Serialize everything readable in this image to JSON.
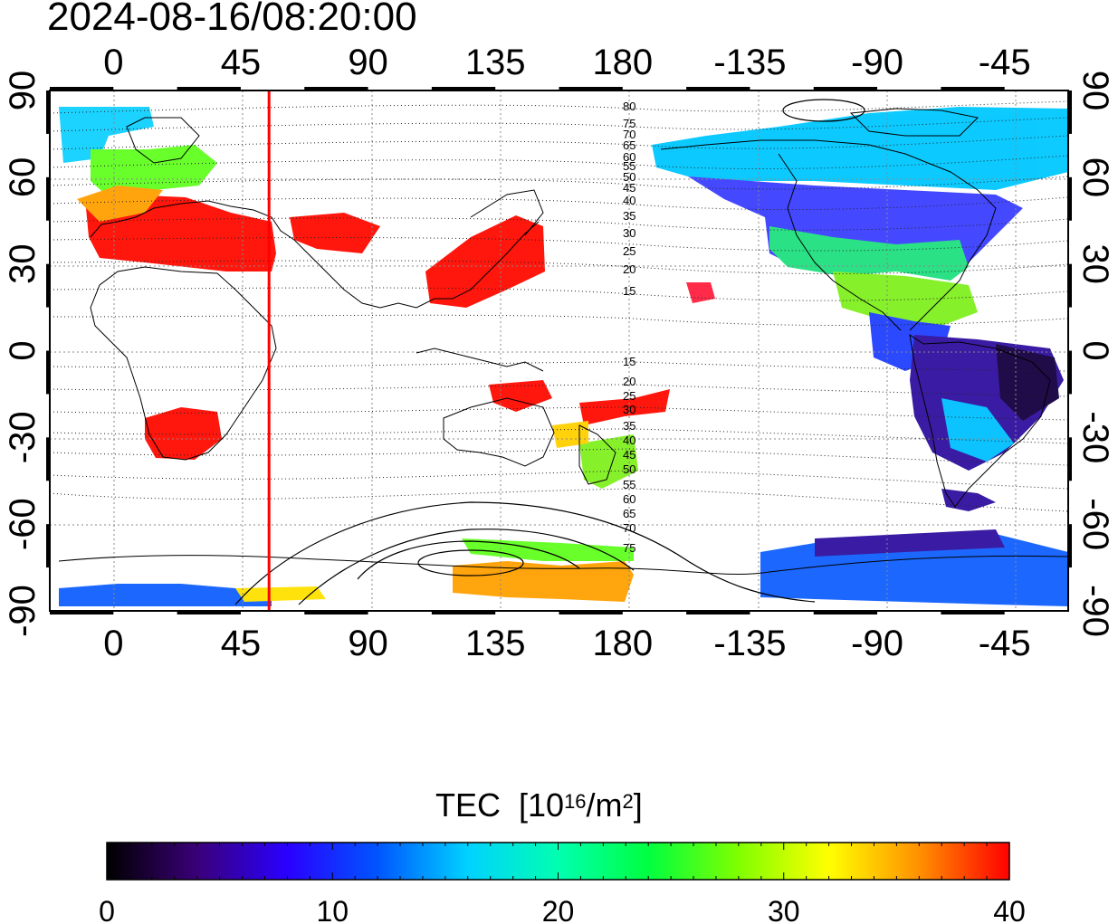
{
  "timestamp": "2024-08-16/08:20:00",
  "map": {
    "projection": "equirectangular, centered 135E",
    "lon_range": [
      -22.5,
      337.5
    ],
    "lat_range": [
      -90,
      90
    ],
    "top_ticks": [
      "0",
      "45",
      "90",
      "135",
      "180",
      "-135",
      "-90",
      "-45"
    ],
    "bottom_ticks": [
      "0",
      "45",
      "90",
      "135",
      "180",
      "-135",
      "-90",
      "-45"
    ],
    "left_ticks": [
      "90",
      "60",
      "30",
      "0",
      "-30",
      "-60",
      "-90"
    ],
    "right_ticks": [
      "90",
      "60",
      "30",
      "0",
      "-30",
      "-60",
      "-90"
    ],
    "meridian_marker_lon": 55,
    "meridian_marker_color": "#ff0000",
    "north_contour_labels": [
      "80",
      "75",
      "70",
      "65",
      "60",
      "55",
      "50",
      "45",
      "40",
      "35",
      "30",
      "25",
      "20",
      "15"
    ],
    "south_contour_labels": [
      "15",
      "20",
      "25",
      "30",
      "35",
      "40",
      "45",
      "50",
      "55",
      "60",
      "65",
      "70",
      "75"
    ]
  },
  "colorbar": {
    "title": "TEC",
    "unit_prefix": "[10",
    "unit_exp": "16",
    "unit_mid": "/m",
    "unit_exp2": "2",
    "unit_suffix": "]",
    "ticks": [
      "0",
      "10",
      "20",
      "30",
      "40"
    ],
    "min": 0,
    "max": 40,
    "colors": [
      "#000000",
      "#3a0078",
      "#2a00ff",
      "#0055ff",
      "#00d2ff",
      "#00ffb0",
      "#00ff40",
      "#80ff00",
      "#ffff00",
      "#ff9000",
      "#ff0000"
    ]
  }
}
